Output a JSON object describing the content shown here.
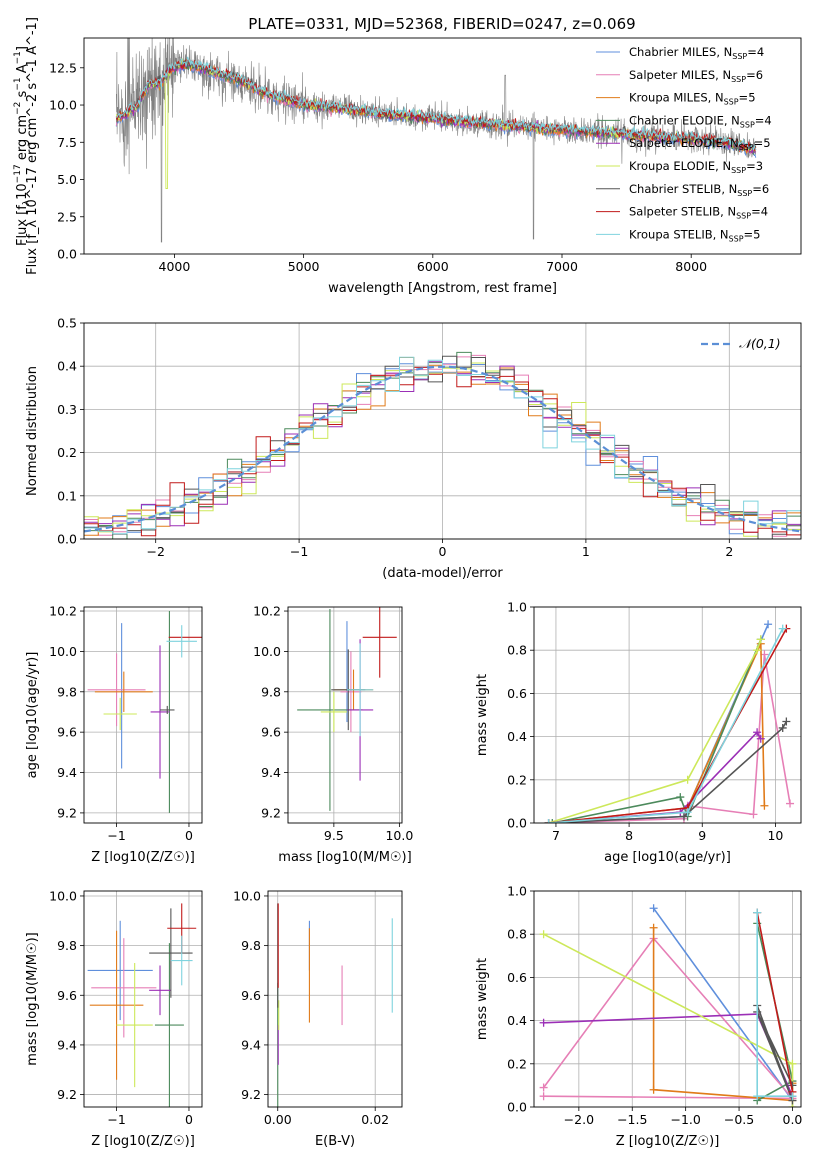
{
  "figure_title": "PLATE=0331, MJD=52368, FIBERID=0247, z=0.069",
  "colors": {
    "Chabrier MILES": "#5f8fdc",
    "Salpeter MILES": "#e67fb6",
    "Kroupa MILES": "#e07b1a",
    "Chabrier ELODIE": "#4c8a5c",
    "Salpeter ELODIE": "#9b2fb6",
    "Kroupa ELODIE": "#cde85a",
    "Chabrier STELIB": "#555555",
    "Salpeter STELIB": "#c11a1a",
    "Kroupa STELIB": "#7fd3de",
    "data": "#808080",
    "gauss": "#5b8fd6",
    "grid": "#b0b0b0"
  },
  "chart_data": [
    {
      "id": "spectrum",
      "type": "line",
      "title": "PLATE=0331, MJD=52368, FIBERID=0247, z=0.069",
      "xlabel": "wavelength [Angstrom, rest frame]",
      "ylabel": "Flux [f_λ 10^-17 erg cm^-2 s^-1 A^-1]",
      "xlim": [
        3300,
        8850
      ],
      "ylim": [
        0,
        14.5
      ],
      "xticks": [
        4000,
        5000,
        6000,
        7000,
        8000
      ],
      "xtick_labels": [
        "4000",
        "5000",
        "6000",
        "7000",
        "8000"
      ],
      "yticks": [
        0,
        2.5,
        5,
        7.5,
        10,
        12.5
      ],
      "ytick_labels": [
        "0.0",
        "2.5",
        "5.0",
        "7.5",
        "10.0",
        "12.5"
      ],
      "grid": false,
      "legend_position": "top-right",
      "continuum_x": [
        3550,
        3650,
        3700,
        3800,
        3900,
        3960,
        4000,
        4100,
        4300,
        4500,
        4700,
        5000,
        5300,
        5600,
        6000,
        6300,
        6600,
        7000,
        7400,
        7700,
        8000,
        8300,
        8500
      ],
      "continuum_y": [
        9.0,
        9.6,
        9.8,
        11.4,
        11.5,
        12.3,
        12.5,
        12.8,
        12.2,
        11.7,
        10.8,
        10.0,
        9.8,
        9.4,
        9.1,
        8.8,
        8.6,
        8.3,
        8.1,
        7.9,
        7.7,
        7.4,
        7.0
      ],
      "series": [
        {
          "name": "Chabrier MILES",
          "nssp": "4"
        },
        {
          "name": "Salpeter MILES",
          "nssp": "6"
        },
        {
          "name": "Kroupa MILES",
          "nssp": "5"
        },
        {
          "name": "Chabrier ELODIE",
          "nssp": "4"
        },
        {
          "name": "Salpeter ELODIE",
          "nssp": "5"
        },
        {
          "name": "Kroupa ELODIE",
          "nssp": "3"
        },
        {
          "name": "Chabrier STELIB",
          "nssp": "6"
        },
        {
          "name": "Salpeter STELIB",
          "nssp": "4"
        },
        {
          "name": "Kroupa STELIB",
          "nssp": "5"
        }
      ]
    },
    {
      "id": "residuals",
      "type": "histogram",
      "xlabel": "(data-model)/error",
      "ylabel": "Normed distribution",
      "xlim": [
        -2.5,
        2.5
      ],
      "ylim": [
        0,
        0.5
      ],
      "xticks": [
        -2,
        -1,
        0,
        1,
        2
      ],
      "xtick_labels": [
        "−2",
        "−1",
        "0",
        "1",
        "2"
      ],
      "yticks": [
        0,
        0.1,
        0.2,
        0.3,
        0.4,
        0.5
      ],
      "ytick_labels": [
        "0.0",
        "0.1",
        "0.2",
        "0.3",
        "0.4",
        "0.5"
      ],
      "grid": true,
      "legend_position": "top-right",
      "gauss_label": "𝒩(0,1)",
      "bins": 50
    },
    {
      "id": "age_vs_z",
      "type": "scatter",
      "xlabel": "Z [log10(Z/Z☉)]",
      "ylabel": "age [log10(age/yr)]",
      "xlim": [
        -1.45,
        0.18
      ],
      "ylim": [
        9.15,
        10.22
      ],
      "xticks": [
        -1,
        0
      ],
      "xtick_labels": [
        "−1",
        "0"
      ],
      "yticks": [
        9.2,
        9.4,
        9.6,
        9.8,
        10.0,
        10.2
      ],
      "ytick_labels": [
        "9.2",
        "9.4",
        "9.6",
        "9.8",
        "10.0",
        "10.2"
      ],
      "grid": true,
      "points": [
        {
          "series": "Chabrier MILES",
          "x": -0.93,
          "y": 9.78,
          "xerr": 0.0,
          "yerr": 0.36
        },
        {
          "series": "Salpeter MILES",
          "x": -1.0,
          "y": 9.81,
          "xerr": 0.4,
          "yerr": 0.18
        },
        {
          "series": "Kroupa MILES",
          "x": -0.9,
          "y": 9.8,
          "xerr": 0.4,
          "yerr": 0.1
        },
        {
          "series": "Chabrier ELODIE",
          "x": -0.27,
          "y": 9.7,
          "xerr": 0.0,
          "yerr": 0.5
        },
        {
          "series": "Salpeter ELODIE",
          "x": -0.4,
          "y": 9.7,
          "xerr": 0.13,
          "yerr": 0.33
        },
        {
          "series": "Kroupa ELODIE",
          "x": -0.95,
          "y": 9.69,
          "xerr": 0.23,
          "yerr": 0.08
        },
        {
          "series": "Chabrier STELIB",
          "x": -0.3,
          "y": 9.71,
          "xerr": 0.1,
          "yerr": 0.02
        },
        {
          "series": "Salpeter STELIB",
          "x": -0.05,
          "y": 10.07,
          "xerr": 0.23,
          "yerr": 0.0
        },
        {
          "series": "Kroupa STELIB",
          "x": -0.1,
          "y": 10.05,
          "xerr": 0.21,
          "yerr": 0.08
        }
      ]
    },
    {
      "id": "age_vs_mass",
      "type": "scatter",
      "xlabel": "mass [log10(M/M☉)]",
      "ylabel": "",
      "xlim": [
        9.15,
        10.02
      ],
      "ylim": [
        9.15,
        10.22
      ],
      "xticks": [
        9.5,
        10.0
      ],
      "xtick_labels": [
        "9.5",
        "10.0"
      ],
      "yticks": [
        9.2,
        9.4,
        9.6,
        9.8,
        10.0,
        10.2
      ],
      "ytick_labels": [
        "9.2",
        "9.4",
        "9.6",
        "9.8",
        "10.0",
        "10.2"
      ],
      "grid": true,
      "points": [
        {
          "series": "Chabrier MILES",
          "x": 9.6,
          "y": 9.9,
          "xerr": 0.0,
          "yerr": 0.25
        },
        {
          "series": "Salpeter MILES",
          "x": 9.63,
          "y": 9.8,
          "xerr": 0.08,
          "yerr": 0.2
        },
        {
          "series": "Kroupa MILES",
          "x": 9.65,
          "y": 9.81,
          "xerr": 0.15,
          "yerr": 0.1
        },
        {
          "series": "Chabrier ELODIE",
          "x": 9.47,
          "y": 9.71,
          "xerr": 0.25,
          "yerr": 0.5
        },
        {
          "series": "Salpeter ELODIE",
          "x": 9.7,
          "y": 9.71,
          "xerr": 0.1,
          "yerr": 0.35
        },
        {
          "series": "Kroupa ELODIE",
          "x": 9.5,
          "y": 9.7,
          "xerr": 0.1,
          "yerr": 0.1
        },
        {
          "series": "Chabrier STELIB",
          "x": 9.61,
          "y": 9.81,
          "xerr": 0.13,
          "yerr": 0.2
        },
        {
          "series": "Salpeter STELIB",
          "x": 9.85,
          "y": 10.07,
          "xerr": 0.13,
          "yerr": 0.2
        },
        {
          "series": "Kroupa STELIB",
          "x": 9.7,
          "y": 9.81,
          "xerr": 0.1,
          "yerr": 0.23
        }
      ]
    },
    {
      "id": "weight_vs_age",
      "type": "line",
      "xlabel": "age [log10(age/yr)]",
      "ylabel": "mass weight",
      "xlim": [
        6.7,
        10.35
      ],
      "ylim": [
        0,
        1.0
      ],
      "xticks": [
        7,
        8,
        9,
        10
      ],
      "xtick_labels": [
        "7",
        "8",
        "9",
        "10"
      ],
      "yticks": [
        0,
        0.2,
        0.4,
        0.6,
        0.8,
        1.0
      ],
      "ytick_labels": [
        "0.0",
        "0.2",
        "0.4",
        "0.6",
        "0.8",
        "1.0"
      ],
      "grid": true,
      "series": [
        {
          "name": "Chabrier MILES",
          "x": [
            6.9,
            8.75,
            8.8,
            9.9
          ],
          "y": [
            0.0,
            0.03,
            0.07,
            0.92
          ]
        },
        {
          "name": "Salpeter MILES",
          "x": [
            6.9,
            8.75,
            8.8,
            9.7,
            9.85,
            10.2
          ],
          "y": [
            0.0,
            0.02,
            0.08,
            0.04,
            0.78,
            0.09
          ]
        },
        {
          "name": "Kroupa MILES",
          "x": [
            6.9,
            8.8,
            9.8,
            9.85
          ],
          "y": [
            0.0,
            0.07,
            0.83,
            0.08
          ]
        },
        {
          "name": "Chabrier ELODIE",
          "x": [
            6.95,
            8.7,
            8.8,
            9.8
          ],
          "y": [
            0.0,
            0.12,
            0.03,
            0.85
          ]
        },
        {
          "name": "Salpeter ELODIE",
          "x": [
            6.9,
            8.7,
            9.75,
            9.8
          ],
          "y": [
            0.0,
            0.05,
            0.42,
            0.39
          ]
        },
        {
          "name": "Kroupa ELODIE",
          "x": [
            6.9,
            8.8,
            9.75,
            9.8
          ],
          "y": [
            0.0,
            0.2,
            0.8,
            0.85
          ]
        },
        {
          "name": "Chabrier STELIB",
          "x": [
            6.9,
            8.75,
            10.1,
            10.15
          ],
          "y": [
            0.0,
            0.03,
            0.44,
            0.47
          ]
        },
        {
          "name": "Salpeter STELIB",
          "x": [
            6.9,
            8.8,
            10.15
          ],
          "y": [
            0.0,
            0.07,
            0.9
          ]
        },
        {
          "name": "Kroupa STELIB",
          "x": [
            6.9,
            8.8,
            10.1
          ],
          "y": [
            0.0,
            0.05,
            0.9
          ]
        }
      ]
    },
    {
      "id": "mass_vs_z",
      "type": "scatter",
      "xlabel": "Z [log10(Z/Z☉)]",
      "ylabel": "mass [log10(M/M☉)]",
      "xlim": [
        -1.45,
        0.18
      ],
      "ylim": [
        9.15,
        10.02
      ],
      "xticks": [
        -1,
        0
      ],
      "xtick_labels": [
        "−1",
        "0"
      ],
      "yticks": [
        9.2,
        9.4,
        9.6,
        9.8,
        10.0
      ],
      "ytick_labels": [
        "9.2",
        "9.4",
        "9.6",
        "9.8",
        "10.0"
      ],
      "grid": true,
      "points": [
        {
          "series": "Chabrier MILES",
          "x": -0.95,
          "y": 9.7,
          "xerr": 0.45,
          "yerr": 0.2
        },
        {
          "series": "Salpeter MILES",
          "x": -0.9,
          "y": 9.63,
          "xerr": 0.45,
          "yerr": 0.2
        },
        {
          "series": "Kroupa MILES",
          "x": -1.0,
          "y": 9.56,
          "xerr": 0.37,
          "yerr": 0.3
        },
        {
          "series": "Chabrier ELODIE",
          "x": -0.27,
          "y": 9.48,
          "xerr": 0.2,
          "yerr": 0.33
        },
        {
          "series": "Salpeter ELODIE",
          "x": -0.4,
          "y": 9.62,
          "xerr": 0.15,
          "yerr": 0.1
        },
        {
          "series": "Kroupa ELODIE",
          "x": -0.75,
          "y": 9.48,
          "xerr": 0.25,
          "yerr": 0.25
        },
        {
          "series": "Chabrier STELIB",
          "x": -0.25,
          "y": 9.77,
          "xerr": 0.3,
          "yerr": 0.18
        },
        {
          "series": "Salpeter STELIB",
          "x": -0.1,
          "y": 9.87,
          "xerr": 0.2,
          "yerr": 0.1
        },
        {
          "series": "Kroupa STELIB",
          "x": -0.1,
          "y": 9.74,
          "xerr": 0.15,
          "yerr": 0.1
        }
      ]
    },
    {
      "id": "mass_vs_ebv",
      "type": "scatter",
      "xlabel": "E(B-V)",
      "ylabel": "",
      "xlim": [
        -0.002,
        0.0255
      ],
      "ylim": [
        9.15,
        10.02
      ],
      "xticks": [
        0.0,
        0.02
      ],
      "xtick_labels": [
        "0.00",
        "0.02"
      ],
      "yticks": [
        9.2,
        9.4,
        9.6,
        9.8,
        10.0
      ],
      "ytick_labels": [
        "9.2",
        "9.4",
        "9.6",
        "9.8",
        "10.0"
      ],
      "grid": true,
      "points": [
        {
          "series": "Chabrier MILES",
          "x": 0.0065,
          "y": 9.8,
          "xerr": 0.0,
          "yerr": 0.1
        },
        {
          "series": "Salpeter MILES",
          "x": 0.0132,
          "y": 9.6,
          "xerr": 0.0,
          "yerr": 0.12
        },
        {
          "series": "Kroupa MILES",
          "x": 0.0065,
          "y": 9.68,
          "xerr": 0.0,
          "yerr": 0.19
        },
        {
          "series": "Chabrier ELODIE",
          "x": 0.0,
          "y": 9.4,
          "xerr": 0.0,
          "yerr": 0.25
        },
        {
          "series": "Salpeter ELODIE",
          "x": 0.0001,
          "y": 9.4,
          "xerr": 0.0,
          "yerr": 0.08
        },
        {
          "series": "Kroupa ELODIE",
          "x": 0.0002,
          "y": 9.52,
          "xerr": 0.0,
          "yerr": 0.06
        },
        {
          "series": "Chabrier STELIB",
          "x": 0.0,
          "y": 9.76,
          "xerr": 0.0,
          "yerr": 0.21
        },
        {
          "series": "Salpeter STELIB",
          "x": 0.0001,
          "y": 9.8,
          "xerr": 0.0,
          "yerr": 0.17
        },
        {
          "series": "Kroupa STELIB",
          "x": 0.0235,
          "y": 9.72,
          "xerr": 0.0,
          "yerr": 0.19
        }
      ]
    },
    {
      "id": "weight_vs_z",
      "type": "line",
      "xlabel": "Z [log10(Z/Z☉)]",
      "ylabel": "mass weight",
      "xlim": [
        -2.42,
        0.08
      ],
      "ylim": [
        0,
        1.0
      ],
      "xticks": [
        -2.0,
        -1.5,
        -1.0,
        -0.5,
        0.0
      ],
      "xtick_labels": [
        "−2.0",
        "−1.5",
        "−1.0",
        "−0.5",
        "0.0"
      ],
      "yticks": [
        0,
        0.2,
        0.4,
        0.6,
        0.8,
        1.0
      ],
      "ytick_labels": [
        "0.0",
        "0.2",
        "0.4",
        "0.6",
        "0.8",
        "1.0"
      ],
      "grid": true,
      "series": [
        {
          "name": "Chabrier MILES",
          "x": [
            -1.3,
            0.0
          ],
          "y": [
            0.92,
            0.03
          ]
        },
        {
          "name": "Salpeter MILES",
          "x": [
            -2.33,
            -1.3,
            0.0,
            -2.33
          ],
          "y": [
            0.09,
            0.78,
            0.04,
            0.05
          ]
        },
        {
          "name": "Kroupa MILES",
          "x": [
            -1.3,
            -1.3,
            0.0,
            0.0
          ],
          "y": [
            0.83,
            0.08,
            0.03,
            0.11
          ]
        },
        {
          "name": "Chabrier ELODIE",
          "x": [
            -0.33,
            0.0,
            -0.33
          ],
          "y": [
            0.85,
            0.12,
            0.03
          ]
        },
        {
          "name": "Salpeter ELODIE",
          "x": [
            -2.33,
            -0.33,
            0.0
          ],
          "y": [
            0.39,
            0.43,
            0.05
          ]
        },
        {
          "name": "Kroupa ELODIE",
          "x": [
            -2.33,
            0.0,
            0.0
          ],
          "y": [
            0.8,
            0.2,
            0.0
          ]
        },
        {
          "name": "Chabrier STELIB",
          "x": [
            -0.33,
            0.0,
            -0.33,
            0.0
          ],
          "y": [
            0.47,
            0.03,
            0.44,
            0.1
          ]
        },
        {
          "name": "Salpeter STELIB",
          "x": [
            -0.33,
            0.0
          ],
          "y": [
            0.9,
            0.07
          ]
        },
        {
          "name": "Kroupa STELIB",
          "x": [
            -0.33,
            -0.33,
            0.0
          ],
          "y": [
            0.9,
            0.05,
            0.05
          ]
        }
      ]
    }
  ]
}
